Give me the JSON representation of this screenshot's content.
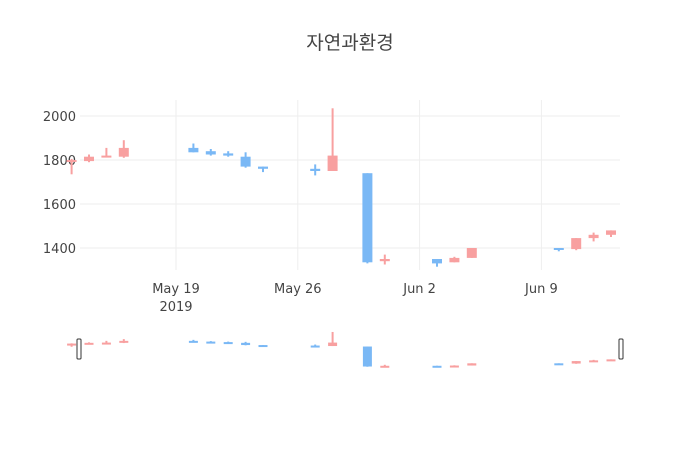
{
  "chart_data": {
    "type": "candlestick",
    "title": "자연과환경",
    "xlabel": "",
    "ylabel": "",
    "x_tick_labels": [
      "May 19\n2019",
      "May 26",
      "Jun 2",
      "Jun 9"
    ],
    "y_tick_labels": [
      "1400",
      "1600",
      "1800",
      "2000"
    ],
    "ylim": [
      1305,
      2075
    ],
    "grid": true,
    "rangeslider": true,
    "increasing_color": "#F8A0A0",
    "decreasing_color": "#7AB8F5",
    "candles": [
      {
        "date": "2019-05-13",
        "open": 1795,
        "high": 1805,
        "low": 1735,
        "close": 1800
      },
      {
        "date": "2019-05-14",
        "open": 1795,
        "high": 1825,
        "low": 1790,
        "close": 1815
      },
      {
        "date": "2019-05-15",
        "open": 1815,
        "high": 1855,
        "low": 1815,
        "close": 1820
      },
      {
        "date": "2019-05-16",
        "open": 1815,
        "high": 1890,
        "low": 1810,
        "close": 1855
      },
      {
        "date": "2019-05-20",
        "open": 1855,
        "high": 1875,
        "low": 1835,
        "close": 1835
      },
      {
        "date": "2019-05-21",
        "open": 1840,
        "high": 1850,
        "low": 1820,
        "close": 1825
      },
      {
        "date": "2019-05-22",
        "open": 1830,
        "high": 1840,
        "low": 1815,
        "close": 1820
      },
      {
        "date": "2019-05-23",
        "open": 1815,
        "high": 1835,
        "low": 1765,
        "close": 1770
      },
      {
        "date": "2019-05-24",
        "open": 1770,
        "high": 1770,
        "low": 1745,
        "close": 1760
      },
      {
        "date": "2019-05-27",
        "open": 1760,
        "high": 1780,
        "low": 1730,
        "close": 1750
      },
      {
        "date": "2019-05-28",
        "open": 1750,
        "high": 2035,
        "low": 1750,
        "close": 1820
      },
      {
        "date": "2019-05-30",
        "open": 1740,
        "high": 1740,
        "low": 1330,
        "close": 1335
      },
      {
        "date": "2019-05-31",
        "open": 1340,
        "high": 1370,
        "low": 1325,
        "close": 1350
      },
      {
        "date": "2019-06-03",
        "open": 1350,
        "high": 1350,
        "low": 1315,
        "close": 1330
      },
      {
        "date": "2019-06-04",
        "open": 1335,
        "high": 1360,
        "low": 1335,
        "close": 1355
      },
      {
        "date": "2019-06-05",
        "open": 1355,
        "high": 1400,
        "low": 1355,
        "close": 1400
      },
      {
        "date": "2019-06-10",
        "open": 1400,
        "high": 1400,
        "low": 1385,
        "close": 1395
      },
      {
        "date": "2019-06-11",
        "open": 1395,
        "high": 1445,
        "low": 1390,
        "close": 1445
      },
      {
        "date": "2019-06-12",
        "open": 1445,
        "high": 1470,
        "low": 1430,
        "close": 1460
      },
      {
        "date": "2019-06-13",
        "open": 1460,
        "high": 1480,
        "low": 1450,
        "close": 1480
      }
    ]
  }
}
